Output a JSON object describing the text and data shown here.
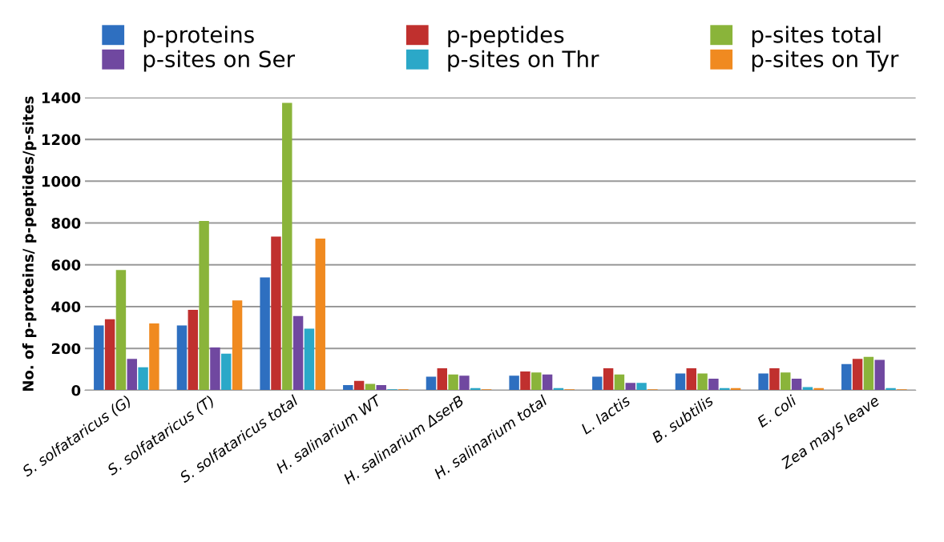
{
  "chart_data": {
    "type": "bar",
    "ylabel": "No. of p-proteins/ p-peptides/p-sites",
    "categories": [
      "S. solfataricus (G)",
      "S. solfataricus (T)",
      "S. solfataricus total",
      "H. salinarium WT",
      "H. salinarium ΔserB",
      "H. salinarium total",
      "L. lactis",
      "B. subtilis",
      "E. coli",
      "Zea mays leave"
    ],
    "series": [
      {
        "name": "p-proteins",
        "color": "#2e6fc0",
        "values": [
          310,
          310,
          540,
          25,
          65,
          70,
          65,
          80,
          80,
          125
        ]
      },
      {
        "name": "p-peptides",
        "color": "#c0302e",
        "values": [
          340,
          385,
          735,
          45,
          105,
          90,
          105,
          105,
          105,
          150
        ]
      },
      {
        "name": "p-sites total",
        "color": "#8ab43a",
        "values": [
          575,
          810,
          1375,
          30,
          75,
          85,
          75,
          80,
          85,
          160
        ]
      },
      {
        "name": "p-sites on Ser",
        "color": "#7048a0",
        "values": [
          150,
          205,
          355,
          25,
          70,
          75,
          35,
          55,
          55,
          145
        ]
      },
      {
        "name": "p-sites on Thr",
        "color": "#2ba8c8",
        "values": [
          110,
          175,
          295,
          5,
          10,
          10,
          35,
          10,
          15,
          10
        ]
      },
      {
        "name": "p-sites on Tyr",
        "color": "#f08a20",
        "values": [
          320,
          430,
          725,
          5,
          5,
          5,
          5,
          10,
          10,
          5
        ]
      }
    ],
    "ylim": [
      0,
      1400
    ],
    "yticks": [
      0,
      200,
      400,
      600,
      800,
      1000,
      1200,
      1400
    ],
    "grid": "y",
    "legend": "top"
  }
}
